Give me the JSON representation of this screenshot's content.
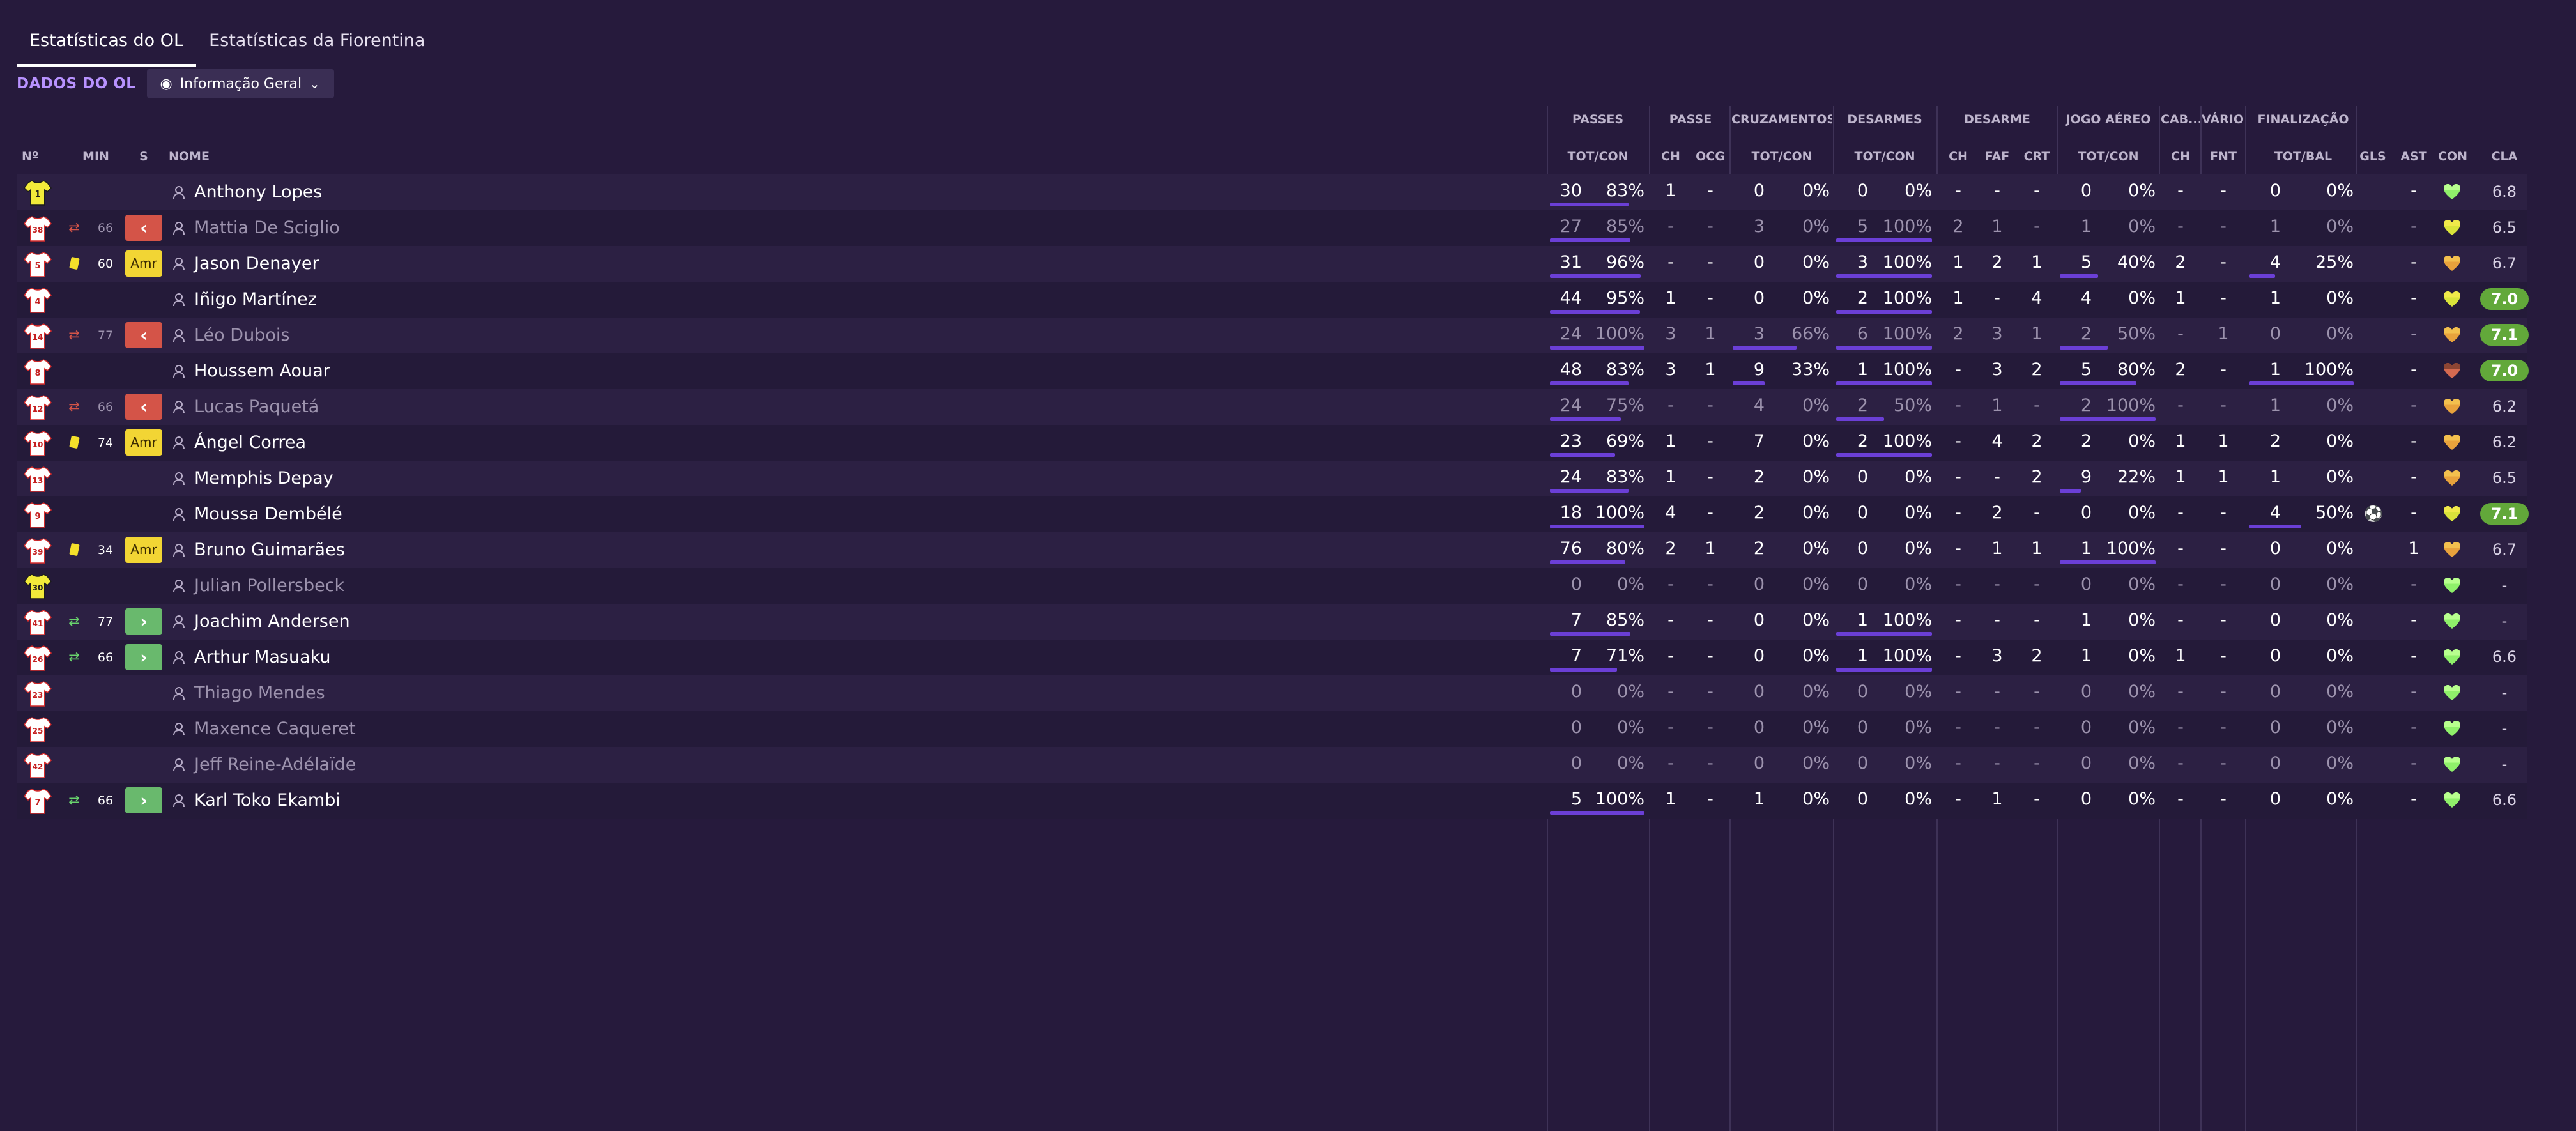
{
  "tabs": [
    {
      "label": "Estatísticas do OL",
      "active": true
    },
    {
      "label": "Estatísticas da Fiorentina",
      "active": false
    }
  ],
  "subbar": {
    "section_label": "DADOS DO OL",
    "view_label": "Informação Geral"
  },
  "column_groups": [
    "PASSES",
    "PASSE",
    "CRUZAMENTOS",
    "DESARMES",
    "DESARME",
    "JOGO AÉREO",
    "CAB...",
    "VÁRIOS",
    "FINALIZAÇÃO"
  ],
  "columns": {
    "num": "Nº",
    "min": "MIN",
    "s": "S",
    "name": "NOME",
    "passes": "TOT/CON",
    "passe_ch": "CH",
    "passe_ocg": "OCG",
    "cruz": "TOT/CON",
    "desarmes": "TOT/CON",
    "des_ch": "CH",
    "des_faf": "FAF",
    "des_crt": "CRT",
    "aereo": "TOT/CON",
    "cab_ch": "CH",
    "varios_fnt": "FNT",
    "final": "TOT/BAL",
    "gls": "GLS",
    "ast": "AST",
    "con": "CON",
    "cla": "CLA"
  },
  "colors": {
    "accent": "#b892ff",
    "bar": "#6b3fd6",
    "sub_out": "#d45448",
    "sub_in": "#69b96d",
    "yellow": "#f2d534",
    "good_rating": "#62a83a"
  },
  "players": [
    {
      "num": "1",
      "kit": "gk",
      "evt": "",
      "min": "",
      "s": "",
      "name": "Anthony Lopes",
      "dim": false,
      "passes": [
        "30",
        "83%",
        0.83
      ],
      "p_ch": "1",
      "p_ocg": "-",
      "cruz": [
        "0",
        "0%",
        0
      ],
      "desm": [
        "0",
        "0%",
        0
      ],
      "d_ch": "-",
      "d_faf": "-",
      "d_crt": "-",
      "aereo": [
        "0",
        "0%",
        0
      ],
      "cab": "-",
      "fnt": "-",
      "fin": [
        "0",
        "0%",
        0
      ],
      "ball": false,
      "gls": "",
      "ast": "-",
      "con": "green",
      "cla": "6.8",
      "cla_hi": false
    },
    {
      "num": "38",
      "kit": "out",
      "evt": "swap",
      "min": "66",
      "s": "out",
      "name": "Mattia De Sciglio",
      "dim": true,
      "passes": [
        "27",
        "85%",
        0.85
      ],
      "p_ch": "-",
      "p_ocg": "-",
      "cruz": [
        "3",
        "0%",
        0
      ],
      "desm": [
        "5",
        "100%",
        1
      ],
      "d_ch": "2",
      "d_faf": "1",
      "d_crt": "-",
      "aereo": [
        "1",
        "0%",
        0
      ],
      "cab": "-",
      "fnt": "-",
      "fin": [
        "1",
        "0%",
        0
      ],
      "ball": false,
      "gls": "",
      "ast": "-",
      "con": "yellowgreen",
      "cla": "6.5",
      "cla_hi": false
    },
    {
      "num": "5",
      "kit": "out",
      "evt": "yellow",
      "min": "60",
      "s": "amr",
      "name": "Jason Denayer",
      "dim": false,
      "passes": [
        "31",
        "96%",
        0.96
      ],
      "p_ch": "-",
      "p_ocg": "-",
      "cruz": [
        "0",
        "0%",
        0
      ],
      "desm": [
        "3",
        "100%",
        1
      ],
      "d_ch": "1",
      "d_faf": "2",
      "d_crt": "1",
      "aereo": [
        "5",
        "40%",
        0.4
      ],
      "cab": "2",
      "fnt": "-",
      "fin": [
        "4",
        "25%",
        0.25
      ],
      "ball": false,
      "gls": "",
      "ast": "-",
      "con": "orange",
      "cla": "6.7",
      "cla_hi": false
    },
    {
      "num": "4",
      "kit": "out",
      "evt": "",
      "min": "",
      "s": "",
      "name": "Iñigo Martínez",
      "dim": false,
      "passes": [
        "44",
        "95%",
        0.95
      ],
      "p_ch": "1",
      "p_ocg": "-",
      "cruz": [
        "0",
        "0%",
        0
      ],
      "desm": [
        "2",
        "100%",
        1
      ],
      "d_ch": "1",
      "d_faf": "-",
      "d_crt": "4",
      "aereo": [
        "4",
        "0%",
        0
      ],
      "cab": "1",
      "fnt": "-",
      "fin": [
        "1",
        "0%",
        0
      ],
      "ball": false,
      "gls": "",
      "ast": "-",
      "con": "yellowgreen",
      "cla": "7.0",
      "cla_hi": true
    },
    {
      "num": "14",
      "kit": "out",
      "evt": "swap",
      "min": "77",
      "s": "out",
      "name": "Léo Dubois",
      "dim": true,
      "passes": [
        "24",
        "100%",
        1
      ],
      "p_ch": "3",
      "p_ocg": "1",
      "cruz": [
        "3",
        "66%",
        0.66
      ],
      "desm": [
        "6",
        "100%",
        1
      ],
      "d_ch": "2",
      "d_faf": "3",
      "d_crt": "1",
      "aereo": [
        "2",
        "50%",
        0.5
      ],
      "cab": "-",
      "fnt": "1",
      "fin": [
        "0",
        "0%",
        0
      ],
      "ball": false,
      "gls": "",
      "ast": "-",
      "con": "orange",
      "cla": "7.1",
      "cla_hi": true
    },
    {
      "num": "8",
      "kit": "out",
      "evt": "",
      "min": "",
      "s": "",
      "name": "Houssem Aouar",
      "dim": false,
      "passes": [
        "48",
        "83%",
        0.83
      ],
      "p_ch": "3",
      "p_ocg": "1",
      "cruz": [
        "9",
        "33%",
        0.33
      ],
      "desm": [
        "1",
        "100%",
        1
      ],
      "d_ch": "-",
      "d_faf": "3",
      "d_crt": "2",
      "aereo": [
        "5",
        "80%",
        0.8
      ],
      "cab": "2",
      "fnt": "-",
      "fin": [
        "1",
        "100%",
        1
      ],
      "ball": false,
      "gls": "",
      "ast": "-",
      "con": "red",
      "cla": "7.0",
      "cla_hi": true
    },
    {
      "num": "12",
      "kit": "out",
      "evt": "swap",
      "min": "66",
      "s": "out",
      "name": "Lucas Paquetá",
      "dim": true,
      "passes": [
        "24",
        "75%",
        0.75
      ],
      "p_ch": "-",
      "p_ocg": "-",
      "cruz": [
        "4",
        "0%",
        0
      ],
      "desm": [
        "2",
        "50%",
        0.5
      ],
      "d_ch": "-",
      "d_faf": "1",
      "d_crt": "-",
      "aereo": [
        "2",
        "100%",
        1
      ],
      "cab": "-",
      "fnt": "-",
      "fin": [
        "1",
        "0%",
        0
      ],
      "ball": false,
      "gls": "",
      "ast": "-",
      "con": "orange",
      "cla": "6.2",
      "cla_hi": false
    },
    {
      "num": "10",
      "kit": "out",
      "evt": "yellow",
      "min": "74",
      "s": "amr",
      "name": "Ángel Correa",
      "dim": false,
      "passes": [
        "23",
        "69%",
        0.69
      ],
      "p_ch": "1",
      "p_ocg": "-",
      "cruz": [
        "7",
        "0%",
        0
      ],
      "desm": [
        "2",
        "100%",
        1
      ],
      "d_ch": "-",
      "d_faf": "4",
      "d_crt": "2",
      "aereo": [
        "2",
        "0%",
        0
      ],
      "cab": "1",
      "fnt": "1",
      "fin": [
        "2",
        "0%",
        0
      ],
      "ball": false,
      "gls": "",
      "ast": "-",
      "con": "orange",
      "cla": "6.2",
      "cla_hi": false
    },
    {
      "num": "13",
      "kit": "out",
      "evt": "",
      "min": "",
      "s": "",
      "name": "Memphis Depay",
      "dim": false,
      "passes": [
        "24",
        "83%",
        0.83
      ],
      "p_ch": "1",
      "p_ocg": "-",
      "cruz": [
        "2",
        "0%",
        0
      ],
      "desm": [
        "0",
        "0%",
        0
      ],
      "d_ch": "-",
      "d_faf": "-",
      "d_crt": "2",
      "aereo": [
        "9",
        "22%",
        0.22
      ],
      "cab": "1",
      "fnt": "1",
      "fin": [
        "1",
        "0%",
        0
      ],
      "ball": false,
      "gls": "",
      "ast": "-",
      "con": "orange",
      "cla": "6.5",
      "cla_hi": false
    },
    {
      "num": "9",
      "kit": "out",
      "evt": "",
      "min": "",
      "s": "",
      "name": "Moussa Dembélé",
      "dim": false,
      "passes": [
        "18",
        "100%",
        1
      ],
      "p_ch": "4",
      "p_ocg": "-",
      "cruz": [
        "2",
        "0%",
        0
      ],
      "desm": [
        "0",
        "0%",
        0
      ],
      "d_ch": "-",
      "d_faf": "2",
      "d_crt": "-",
      "aereo": [
        "0",
        "0%",
        0
      ],
      "cab": "-",
      "fnt": "-",
      "fin": [
        "4",
        "50%",
        0.5
      ],
      "ball": true,
      "gls": "",
      "ast": "-",
      "con": "yellowgreen",
      "cla": "7.1",
      "cla_hi": true
    },
    {
      "num": "39",
      "kit": "out",
      "evt": "yellow",
      "min": "34",
      "s": "amr",
      "name": "Bruno Guimarães",
      "dim": false,
      "passes": [
        "76",
        "80%",
        0.8
      ],
      "p_ch": "2",
      "p_ocg": "1",
      "cruz": [
        "2",
        "0%",
        0
      ],
      "desm": [
        "0",
        "0%",
        0
      ],
      "d_ch": "-",
      "d_faf": "1",
      "d_crt": "1",
      "aereo": [
        "1",
        "100%",
        1
      ],
      "cab": "-",
      "fnt": "-",
      "fin": [
        "0",
        "0%",
        0
      ],
      "ball": false,
      "gls": "",
      "ast": "1",
      "con": "orange",
      "cla": "6.7",
      "cla_hi": false
    },
    {
      "num": "30",
      "kit": "gk",
      "evt": "",
      "min": "",
      "s": "",
      "name": "Julian Pollersbeck",
      "dim": true,
      "passes": [
        "0",
        "0%",
        0
      ],
      "p_ch": "-",
      "p_ocg": "-",
      "cruz": [
        "0",
        "0%",
        0
      ],
      "desm": [
        "0",
        "0%",
        0
      ],
      "d_ch": "-",
      "d_faf": "-",
      "d_crt": "-",
      "aereo": [
        "0",
        "0%",
        0
      ],
      "cab": "-",
      "fnt": "-",
      "fin": [
        "0",
        "0%",
        0
      ],
      "ball": false,
      "gls": "",
      "ast": "-",
      "con": "green",
      "cla": "-",
      "cla_hi": false
    },
    {
      "num": "41",
      "kit": "out",
      "evt": "swap",
      "min": "77",
      "s": "in",
      "name": "Joachim Andersen",
      "dim": false,
      "passes": [
        "7",
        "85%",
        0.85
      ],
      "p_ch": "-",
      "p_ocg": "-",
      "cruz": [
        "0",
        "0%",
        0
      ],
      "desm": [
        "1",
        "100%",
        1
      ],
      "d_ch": "-",
      "d_faf": "-",
      "d_crt": "-",
      "aereo": [
        "1",
        "0%",
        0
      ],
      "cab": "-",
      "fnt": "-",
      "fin": [
        "0",
        "0%",
        0
      ],
      "ball": false,
      "gls": "",
      "ast": "-",
      "con": "green",
      "cla": "-",
      "cla_hi": false
    },
    {
      "num": "26",
      "kit": "out",
      "evt": "swap",
      "min": "66",
      "s": "in",
      "name": "Arthur Masuaku",
      "dim": false,
      "passes": [
        "7",
        "71%",
        0.71
      ],
      "p_ch": "-",
      "p_ocg": "-",
      "cruz": [
        "0",
        "0%",
        0
      ],
      "desm": [
        "1",
        "100%",
        1
      ],
      "d_ch": "-",
      "d_faf": "3",
      "d_crt": "2",
      "aereo": [
        "1",
        "0%",
        0
      ],
      "cab": "1",
      "fnt": "-",
      "fin": [
        "0",
        "0%",
        0
      ],
      "ball": false,
      "gls": "",
      "ast": "-",
      "con": "green",
      "cla": "6.6",
      "cla_hi": false
    },
    {
      "num": "23",
      "kit": "out",
      "evt": "",
      "min": "",
      "s": "",
      "name": "Thiago Mendes",
      "dim": true,
      "passes": [
        "0",
        "0%",
        0
      ],
      "p_ch": "-",
      "p_ocg": "-",
      "cruz": [
        "0",
        "0%",
        0
      ],
      "desm": [
        "0",
        "0%",
        0
      ],
      "d_ch": "-",
      "d_faf": "-",
      "d_crt": "-",
      "aereo": [
        "0",
        "0%",
        0
      ],
      "cab": "-",
      "fnt": "-",
      "fin": [
        "0",
        "0%",
        0
      ],
      "ball": false,
      "gls": "",
      "ast": "-",
      "con": "green",
      "cla": "-",
      "cla_hi": false
    },
    {
      "num": "25",
      "kit": "out",
      "evt": "",
      "min": "",
      "s": "",
      "name": "Maxence Caqueret",
      "dim": true,
      "passes": [
        "0",
        "0%",
        0
      ],
      "p_ch": "-",
      "p_ocg": "-",
      "cruz": [
        "0",
        "0%",
        0
      ],
      "desm": [
        "0",
        "0%",
        0
      ],
      "d_ch": "-",
      "d_faf": "-",
      "d_crt": "-",
      "aereo": [
        "0",
        "0%",
        0
      ],
      "cab": "-",
      "fnt": "-",
      "fin": [
        "0",
        "0%",
        0
      ],
      "ball": false,
      "gls": "",
      "ast": "-",
      "con": "green",
      "cla": "-",
      "cla_hi": false
    },
    {
      "num": "42",
      "kit": "out",
      "evt": "",
      "min": "",
      "s": "",
      "name": "Jeff Reine-Adélaïde",
      "dim": true,
      "passes": [
        "0",
        "0%",
        0
      ],
      "p_ch": "-",
      "p_ocg": "-",
      "cruz": [
        "0",
        "0%",
        0
      ],
      "desm": [
        "0",
        "0%",
        0
      ],
      "d_ch": "-",
      "d_faf": "-",
      "d_crt": "-",
      "aereo": [
        "0",
        "0%",
        0
      ],
      "cab": "-",
      "fnt": "-",
      "fin": [
        "0",
        "0%",
        0
      ],
      "ball": false,
      "gls": "",
      "ast": "-",
      "con": "green",
      "cla": "-",
      "cla_hi": false
    },
    {
      "num": "7",
      "kit": "out",
      "evt": "swap",
      "min": "66",
      "s": "in",
      "name": "Karl Toko Ekambi",
      "dim": false,
      "passes": [
        "5",
        "100%",
        1
      ],
      "p_ch": "1",
      "p_ocg": "-",
      "cruz": [
        "1",
        "0%",
        0
      ],
      "desm": [
        "0",
        "0%",
        0
      ],
      "d_ch": "-",
      "d_faf": "1",
      "d_crt": "-",
      "aereo": [
        "0",
        "0%",
        0
      ],
      "cab": "-",
      "fnt": "-",
      "fin": [
        "0",
        "0%",
        0
      ],
      "ball": false,
      "gls": "",
      "ast": "-",
      "con": "green",
      "cla": "6.6",
      "cla_hi": false
    }
  ]
}
